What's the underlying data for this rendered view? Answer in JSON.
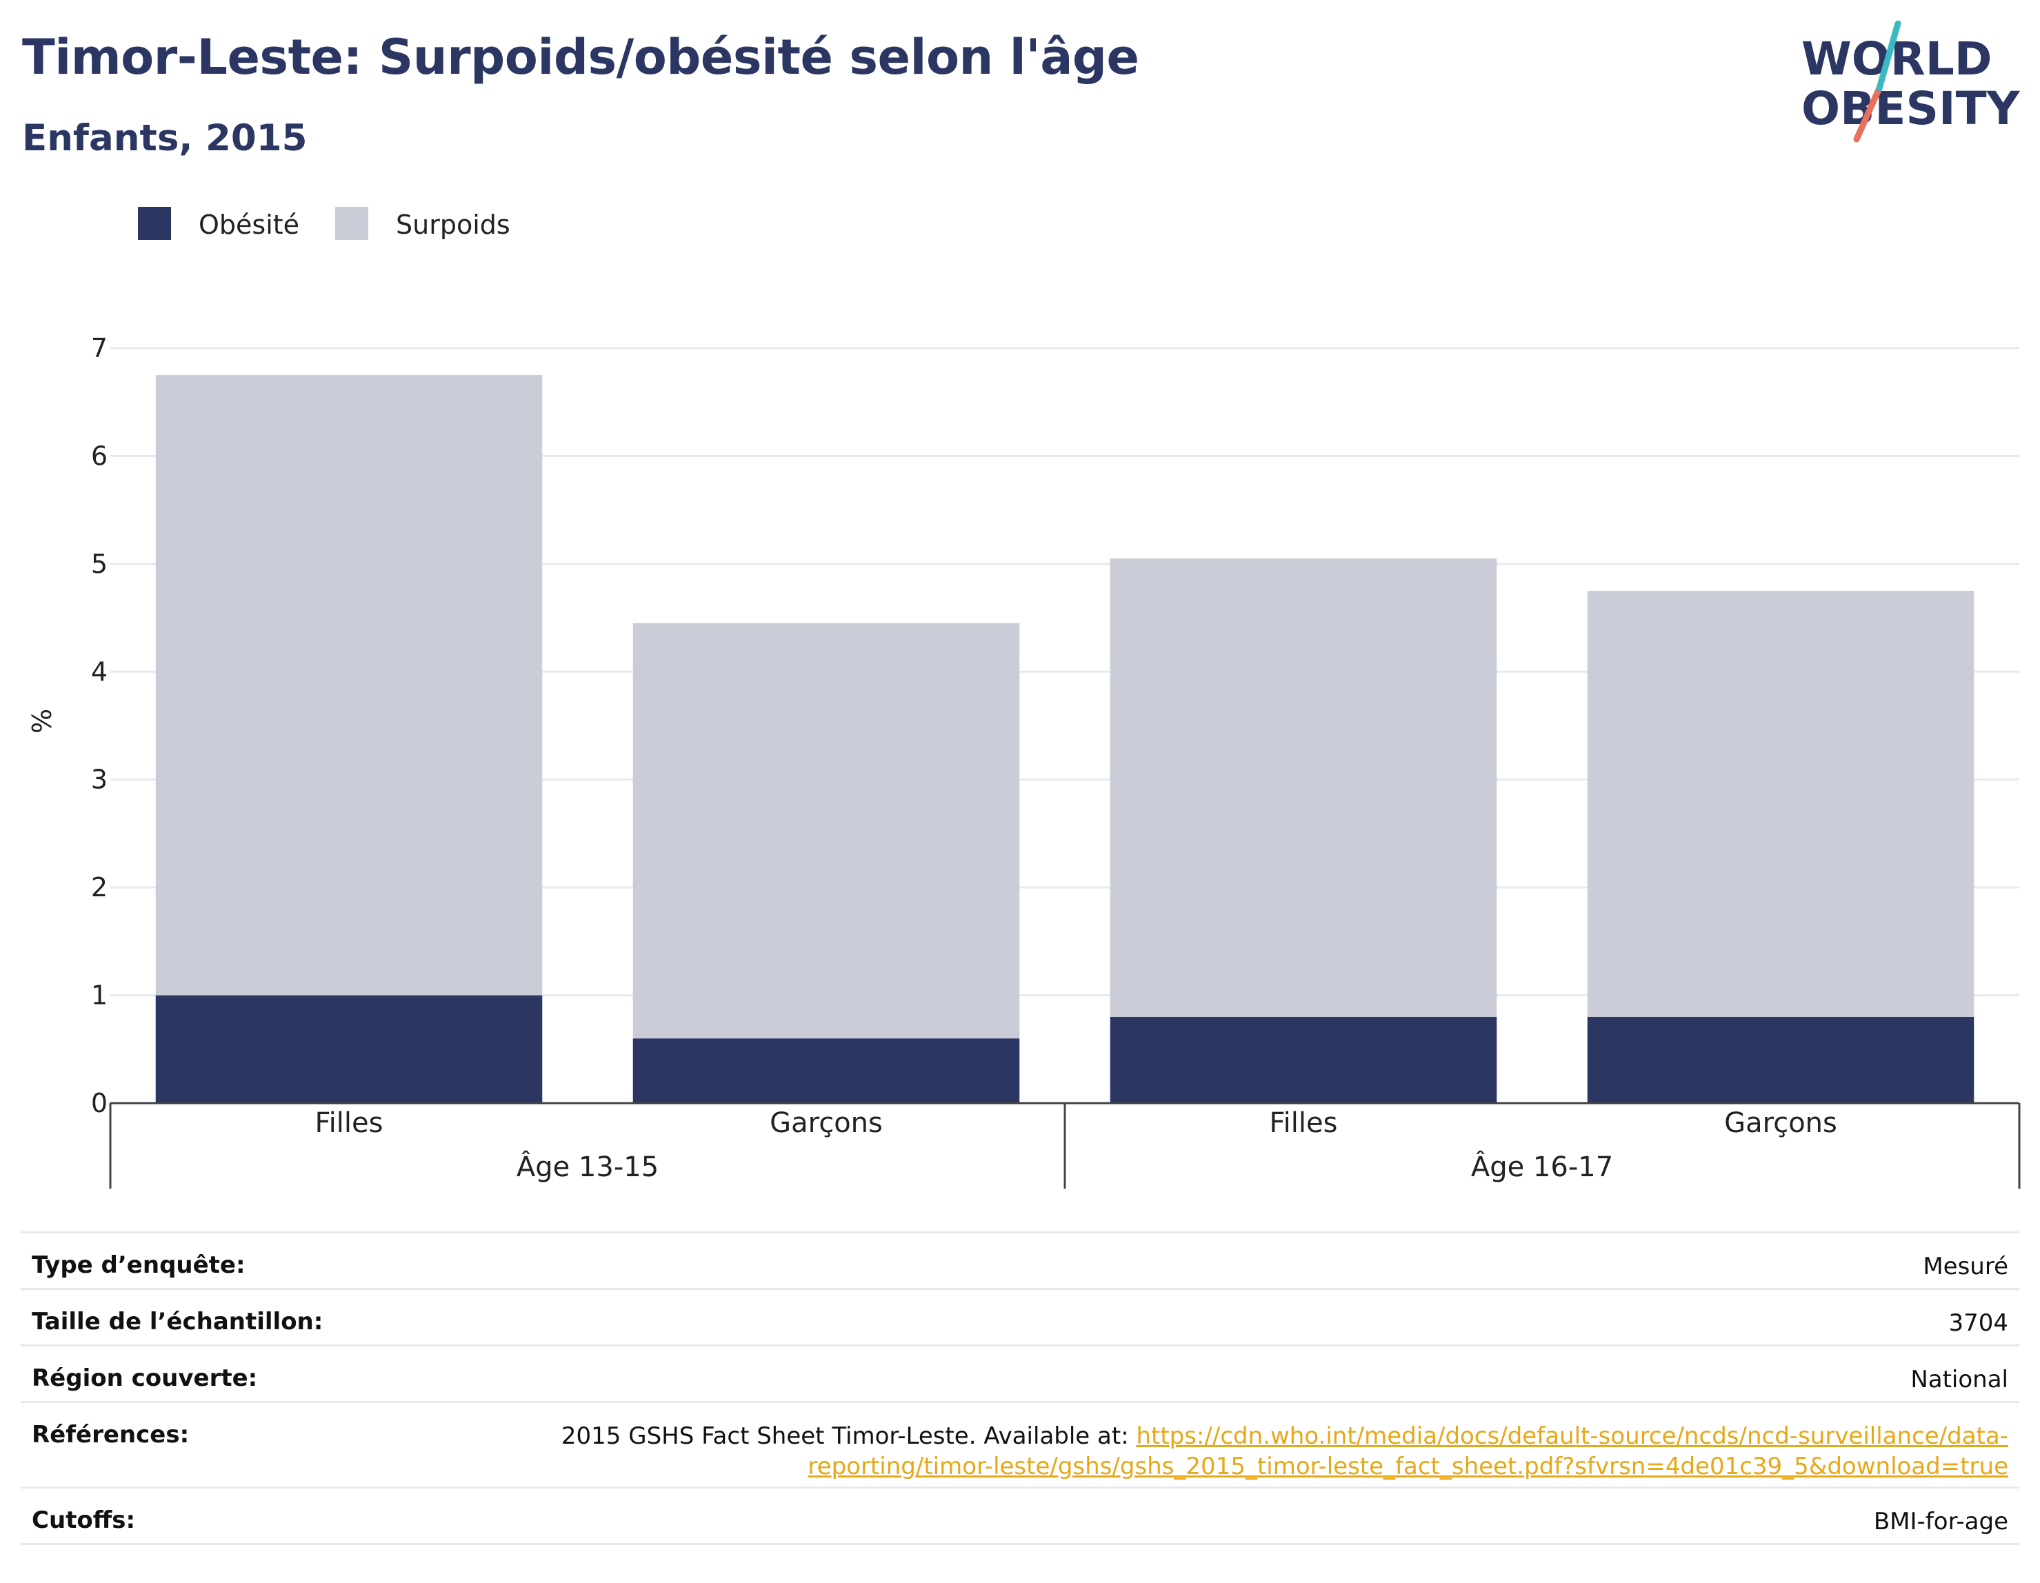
{
  "header": {
    "title": "Timor-Leste: Surpoids/obésité selon l'âge",
    "subtitle": "Enfants, 2015"
  },
  "logo": {
    "line1": "WORLD",
    "line2": "OBESITY"
  },
  "colors": {
    "obesity": "#2b3663",
    "overweight": "#caccd8",
    "brand_teal": "#3bb8c1",
    "brand_coral": "#e8705c"
  },
  "chart_data": {
    "type": "bar",
    "stacked": true,
    "categories": [
      "Filles",
      "Garçons",
      "Filles",
      "Garçons"
    ],
    "groups": [
      {
        "label": "Âge 13-15",
        "categories": [
          0,
          1
        ]
      },
      {
        "label": "Âge 16-17",
        "categories": [
          2,
          3
        ]
      }
    ],
    "series": [
      {
        "name": "Obésité",
        "values": [
          1.0,
          0.6,
          0.8,
          0.8
        ],
        "color": "#2b3663"
      },
      {
        "name": "Surpoids",
        "values": [
          5.75,
          3.85,
          4.25,
          3.95
        ],
        "color": "#caccd8"
      }
    ],
    "ylabel": "%",
    "ylim": [
      0,
      7
    ],
    "yticks": [
      0,
      1,
      2,
      3,
      4,
      5,
      6,
      7
    ],
    "grid": true,
    "legend_position": "top-left"
  },
  "info": {
    "rows": [
      {
        "label": "Type d’enquête:",
        "value": "Mesuré"
      },
      {
        "label": "Taille de l’échantillon:",
        "value": "3704"
      },
      {
        "label": "Région couverte:",
        "value": "National"
      },
      {
        "label": "Références:",
        "value": "2015 GSHS Fact Sheet Timor-Leste. Available at: ",
        "link": "https://cdn.who.int/media/docs/default-source/ncds/ncd-surveillance/data-reporting/timor-leste/gshs/gshs_2015_timor-leste_fact_sheet.pdf?sfvrsn=4de01c39_5&download=true"
      },
      {
        "label": "Cutoffs:",
        "value": "BMI-for-age"
      }
    ]
  }
}
